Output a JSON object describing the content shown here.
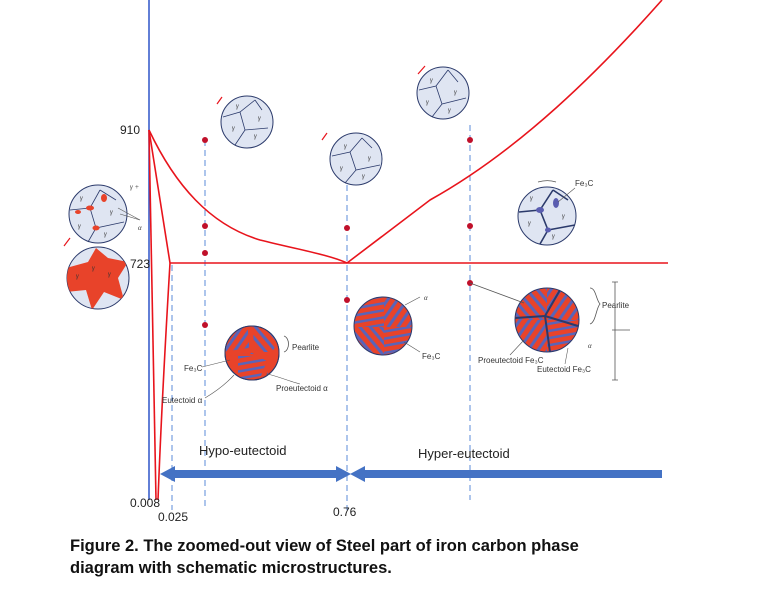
{
  "axis": {
    "y_ticks": [
      "910",
      "723"
    ],
    "x_ticks": [
      "0.008",
      "0.025",
      "0.76"
    ]
  },
  "regions": {
    "hypo": "Hypo-eutectoid",
    "hyper": "Hyper-eutectoid"
  },
  "micro_labels": {
    "pearlite_left": "Pearlite",
    "fe3c_left": "Fe₃C",
    "eutectoid_alpha": "Eutectoid α",
    "proeutectoid_alpha": "Proeutectoid α",
    "fe3c_center": "Fe₃C",
    "alpha_center": "α",
    "fe3c_right_top": "Fe₃C",
    "pearlite_right": "Pearlite",
    "proeutectoid_fe3c": "Proeutectoid Fe₃C",
    "eutectoid_fe3c": "Eutectoid Fe₃C",
    "alpha_right": "α",
    "gamma_plus": "γ +",
    "alpha_left": "α"
  },
  "caption": {
    "line1": "Figure 2. The zoomed-out view of Steel part of iron carbon phase",
    "line2": "diagram with schematic microstructures."
  },
  "colors": {
    "phase_line": "#e8141c",
    "axis": "#2f55c8",
    "guide": "#5b8bd8",
    "arrow": "#4472c4",
    "pearlite_red": "#e8432a",
    "pearlite_blue": "#5a64b8",
    "grain_fill": "#dfe5f2",
    "dot": "#c0102a"
  }
}
